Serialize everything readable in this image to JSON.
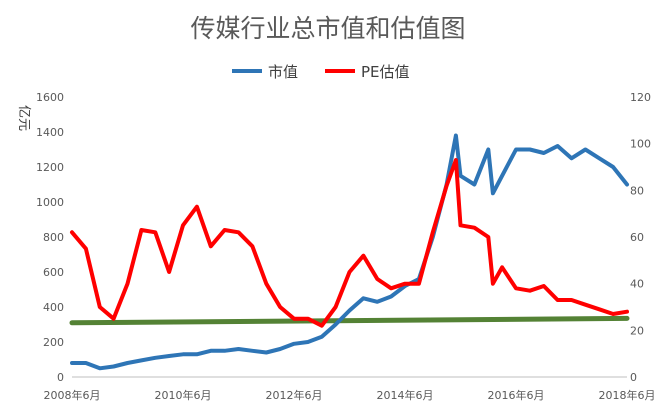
{
  "chart_data": {
    "type": "line",
    "title": "传媒行业总市值和估值图",
    "unit_label": "亿元",
    "legend_position": "top",
    "grid": false,
    "x_range": [
      "2008-06",
      "2018-06"
    ],
    "x_tick_labels": [
      "2008年6月",
      "2010年6月",
      "2012年6月",
      "2014年6月",
      "2016年6月",
      "2018年6月"
    ],
    "y_left": {
      "ylim": [
        0,
        1600
      ],
      "ticks": [
        "0",
        "200",
        "400",
        "600",
        "800",
        "1000",
        "1200",
        "1400",
        "1600"
      ]
    },
    "y_right": {
      "ylim": [
        0,
        120
      ],
      "ticks": [
        "0",
        "20",
        "40",
        "60",
        "80",
        "100",
        "120"
      ]
    },
    "series": [
      {
        "name": "市值",
        "axis": "left",
        "color": "#2e75b6",
        "points": [
          [
            "2008-06",
            80
          ],
          [
            "2008-09",
            80
          ],
          [
            "2008-12",
            50
          ],
          [
            "2009-03",
            60
          ],
          [
            "2009-06",
            80
          ],
          [
            "2009-09",
            95
          ],
          [
            "2009-12",
            110
          ],
          [
            "2010-03",
            120
          ],
          [
            "2010-06",
            130
          ],
          [
            "2010-09",
            130
          ],
          [
            "2010-12",
            150
          ],
          [
            "2011-03",
            150
          ],
          [
            "2011-06",
            160
          ],
          [
            "2011-09",
            150
          ],
          [
            "2011-12",
            140
          ],
          [
            "2012-03",
            160
          ],
          [
            "2012-06",
            190
          ],
          [
            "2012-09",
            200
          ],
          [
            "2012-12",
            230
          ],
          [
            "2013-03",
            300
          ],
          [
            "2013-06",
            380
          ],
          [
            "2013-09",
            450
          ],
          [
            "2013-12",
            430
          ],
          [
            "2014-03",
            460
          ],
          [
            "2014-06",
            520
          ],
          [
            "2014-09",
            560
          ],
          [
            "2014-12",
            800
          ],
          [
            "2015-03",
            1100
          ],
          [
            "2015-05",
            1380
          ],
          [
            "2015-06",
            1150
          ],
          [
            "2015-09",
            1100
          ],
          [
            "2015-12",
            1300
          ],
          [
            "2016-01",
            1050
          ],
          [
            "2016-03",
            1150
          ],
          [
            "2016-06",
            1300
          ],
          [
            "2016-09",
            1300
          ],
          [
            "2016-12",
            1280
          ],
          [
            "2017-03",
            1320
          ],
          [
            "2017-06",
            1250
          ],
          [
            "2017-09",
            1300
          ],
          [
            "2017-12",
            1250
          ],
          [
            "2018-03",
            1200
          ],
          [
            "2018-06",
            1100
          ]
        ]
      },
      {
        "name": "PE估值",
        "axis": "right",
        "color": "#ff0000",
        "points": [
          [
            "2008-06",
            62
          ],
          [
            "2008-09",
            55
          ],
          [
            "2008-12",
            30
          ],
          [
            "2009-03",
            25
          ],
          [
            "2009-06",
            40
          ],
          [
            "2009-09",
            63
          ],
          [
            "2009-12",
            62
          ],
          [
            "2010-03",
            45
          ],
          [
            "2010-06",
            65
          ],
          [
            "2010-09",
            73
          ],
          [
            "2010-12",
            56
          ],
          [
            "2011-03",
            63
          ],
          [
            "2011-06",
            62
          ],
          [
            "2011-09",
            56
          ],
          [
            "2011-12",
            40
          ],
          [
            "2012-03",
            30
          ],
          [
            "2012-06",
            25
          ],
          [
            "2012-09",
            25
          ],
          [
            "2012-12",
            22
          ],
          [
            "2013-03",
            30
          ],
          [
            "2013-06",
            45
          ],
          [
            "2013-09",
            52
          ],
          [
            "2013-12",
            42
          ],
          [
            "2014-03",
            38
          ],
          [
            "2014-06",
            40
          ],
          [
            "2014-09",
            40
          ],
          [
            "2014-12",
            62
          ],
          [
            "2015-03",
            82
          ],
          [
            "2015-05",
            93
          ],
          [
            "2015-06",
            65
          ],
          [
            "2015-09",
            64
          ],
          [
            "2015-12",
            60
          ],
          [
            "2016-01",
            40
          ],
          [
            "2016-03",
            47
          ],
          [
            "2016-06",
            38
          ],
          [
            "2016-09",
            37
          ],
          [
            "2016-12",
            39
          ],
          [
            "2017-03",
            33
          ],
          [
            "2017-06",
            33
          ],
          [
            "2017-09",
            31
          ],
          [
            "2017-12",
            29
          ],
          [
            "2018-03",
            27
          ],
          [
            "2018-06",
            28
          ]
        ]
      },
      {
        "name": "",
        "axis": "left",
        "color": "#548235",
        "points": [
          [
            "2008-06",
            310
          ],
          [
            "2018-06",
            335
          ]
        ]
      }
    ]
  }
}
